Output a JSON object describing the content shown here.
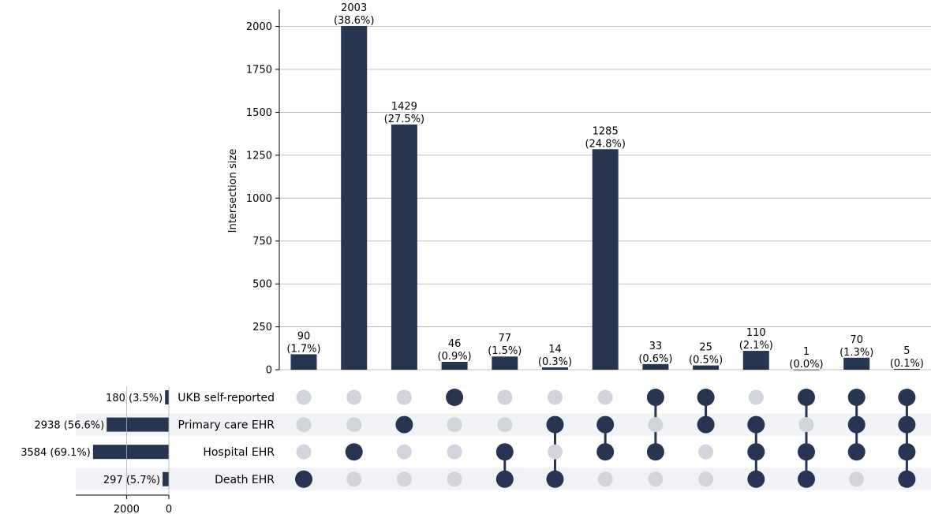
{
  "chart_data": {
    "type": "bar",
    "ylabel": "Intersection size",
    "ylim": [
      0,
      2100
    ],
    "yticks": [
      0,
      250,
      500,
      750,
      1000,
      1250,
      1500,
      1750,
      2000
    ],
    "grid": true,
    "colors": {
      "bar": "#283550",
      "dot_inactive": "#d1d4da",
      "stripe": "#f2f3f6",
      "grid": "#b0b0b0"
    },
    "sets": [
      {
        "name": "UKB self-reported",
        "size": 180,
        "label": "180 (3.5%)"
      },
      {
        "name": "Primary care EHR",
        "size": 2938,
        "label": "2938 (56.6%)"
      },
      {
        "name": "Hospital EHR",
        "size": 3584,
        "label": "3584 (69.1%)"
      },
      {
        "name": "Death EHR",
        "size": 297,
        "label": "297 (5.7%)"
      }
    ],
    "set_size_axis": {
      "ticks": [
        2000,
        0
      ],
      "max": 4400
    },
    "intersections": [
      {
        "value": 90,
        "pct": "(1.7%)",
        "members": [
          3
        ]
      },
      {
        "value": 2003,
        "pct": "(38.6%)",
        "members": [
          2
        ]
      },
      {
        "value": 1429,
        "pct": "(27.5%)",
        "members": [
          1
        ]
      },
      {
        "value": 46,
        "pct": "(0.9%)",
        "members": [
          0
        ]
      },
      {
        "value": 77,
        "pct": "(1.5%)",
        "members": [
          2,
          3
        ]
      },
      {
        "value": 14,
        "pct": "(0.3%)",
        "members": [
          1,
          3
        ]
      },
      {
        "value": 1285,
        "pct": "(24.8%)",
        "members": [
          1,
          2
        ]
      },
      {
        "value": 33,
        "pct": "(0.6%)",
        "members": [
          0,
          2
        ]
      },
      {
        "value": 25,
        "pct": "(0.5%)",
        "members": [
          0,
          1
        ]
      },
      {
        "value": 110,
        "pct": "(2.1%)",
        "members": [
          1,
          2,
          3
        ]
      },
      {
        "value": 1,
        "pct": "(0.0%)",
        "members": [
          0,
          2,
          3
        ]
      },
      {
        "value": 70,
        "pct": "(1.3%)",
        "members": [
          0,
          1,
          2
        ]
      },
      {
        "value": 5,
        "pct": "(0.1%)",
        "members": [
          0,
          1,
          2,
          3
        ]
      }
    ]
  }
}
